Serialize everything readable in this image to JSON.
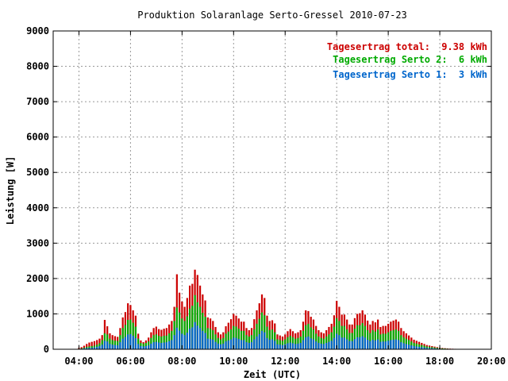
{
  "chart_data": {
    "type": "bar",
    "stacked": true,
    "title": "Produktion Solaranlage Serto-Gressel 2010-07-23",
    "xlabel": "Zeit (UTC)",
    "ylabel": "Leistung [W]",
    "xlim": [
      3.0,
      20.0
    ],
    "ylim": [
      0,
      9000
    ],
    "x_ticks": [
      "04:00",
      "06:00",
      "08:00",
      "10:00",
      "12:00",
      "14:00",
      "16:00",
      "18:00",
      "20:00"
    ],
    "y_ticks": [
      "0",
      "1000",
      "2000",
      "3000",
      "4000",
      "5000",
      "6000",
      "7000",
      "8000",
      "9000"
    ],
    "grid": true,
    "legend_position": "top-right",
    "legend": [
      {
        "label": "Tagesertrag total:",
        "value": "9.38 kWh",
        "color": "#cc0000"
      },
      {
        "label": "Tagesertrag Serto 2:",
        "value": "6 kWh",
        "color": "#00aa00"
      },
      {
        "label": "Tagesertrag Serto 1:",
        "value": "3 kWh",
        "color": "#0066cc"
      }
    ],
    "colors": {
      "total": "#cc0000",
      "serto2": "#00aa00",
      "serto1": "#0066cc"
    },
    "x": [
      4.0,
      4.1,
      4.2,
      4.3,
      4.4,
      4.5,
      4.6,
      4.7,
      4.8,
      4.9,
      5.0,
      5.1,
      5.2,
      5.3,
      5.4,
      5.5,
      5.6,
      5.7,
      5.8,
      5.9,
      6.0,
      6.1,
      6.2,
      6.3,
      6.4,
      6.5,
      6.6,
      6.7,
      6.8,
      6.9,
      7.0,
      7.1,
      7.2,
      7.3,
      7.4,
      7.5,
      7.6,
      7.7,
      7.8,
      7.9,
      8.0,
      8.1,
      8.2,
      8.3,
      8.4,
      8.5,
      8.6,
      8.7,
      8.8,
      8.9,
      9.0,
      9.1,
      9.2,
      9.3,
      9.4,
      9.5,
      9.6,
      9.7,
      9.8,
      9.9,
      10.0,
      10.1,
      10.2,
      10.3,
      10.4,
      10.5,
      10.6,
      10.7,
      10.8,
      10.9,
      11.0,
      11.1,
      11.2,
      11.3,
      11.4,
      11.5,
      11.6,
      11.7,
      11.8,
      11.9,
      12.0,
      12.1,
      12.2,
      12.3,
      12.4,
      12.5,
      12.6,
      12.7,
      12.8,
      12.9,
      13.0,
      13.1,
      13.2,
      13.3,
      13.4,
      13.5,
      13.6,
      13.7,
      13.8,
      13.9,
      14.0,
      14.1,
      14.2,
      14.3,
      14.4,
      14.5,
      14.6,
      14.7,
      14.8,
      14.9,
      15.0,
      15.1,
      15.2,
      15.3,
      15.4,
      15.5,
      15.6,
      15.7,
      15.8,
      15.9,
      16.0,
      16.1,
      16.2,
      16.3,
      16.4,
      16.5,
      16.6,
      16.7,
      16.8,
      16.9,
      17.0,
      17.1,
      17.2,
      17.3,
      17.4,
      17.5,
      17.6,
      17.7,
      17.8,
      17.9,
      18.0,
      18.1,
      18.2,
      18.3,
      18.4,
      18.5,
      18.6,
      18.7,
      18.8,
      18.9,
      19.0
    ],
    "series": [
      {
        "name": "Serto 1",
        "values": [
          10,
          15,
          25,
          35,
          40,
          45,
          55,
          70,
          90,
          130,
          240,
          220,
          150,
          130,
          120,
          115,
          200,
          300,
          350,
          420,
          430,
          380,
          320,
          150,
          90,
          80,
          90,
          110,
          160,
          200,
          210,
          190,
          180,
          190,
          200,
          230,
          260,
          400,
          610,
          530,
          440,
          400,
          470,
          580,
          620,
          770,
          670,
          600,
          520,
          460,
          300,
          290,
          270,
          210,
          160,
          140,
          160,
          220,
          250,
          280,
          330,
          320,
          290,
          260,
          260,
          200,
          180,
          200,
          280,
          360,
          430,
          520,
          480,
          320,
          270,
          280,
          240,
          140,
          130,
          120,
          140,
          170,
          190,
          170,
          150,
          160,
          180,
          260,
          340,
          360,
          310,
          280,
          220,
          180,
          160,
          150,
          180,
          210,
          240,
          320,
          440,
          400,
          330,
          330,
          280,
          230,
          230,
          290,
          340,
          340,
          370,
          330,
          270,
          230,
          270,
          250,
          280,
          210,
          220,
          220,
          240,
          260,
          270,
          280,
          260,
          200,
          170,
          150,
          130,
          110,
          90,
          80,
          70,
          60,
          50,
          40,
          35,
          30,
          25,
          20,
          15,
          12,
          10,
          8,
          6,
          5,
          4,
          3,
          2,
          1,
          1
        ],
        "color": "#0066cc"
      },
      {
        "name": "Serto 2",
        "values": [
          15,
          25,
          45,
          65,
          80,
          90,
          100,
          130,
          170,
          260,
          450,
          420,
          300,
          260,
          240,
          235,
          400,
          600,
          690,
          830,
          840,
          750,
          640,
          300,
          180,
          160,
          180,
          220,
          320,
          400,
          420,
          380,
          360,
          380,
          390,
          450,
          520,
          800,
          1180,
          1040,
          870,
          800,
          930,
          1150,
          1230,
          1530,
          1330,
          1200,
          1030,
          920,
          600,
          580,
          540,
          420,
          320,
          280,
          320,
          440,
          500,
          560,
          660,
          640,
          580,
          520,
          520,
          400,
          360,
          400,
          560,
          720,
          860,
          1040,
          960,
          640,
          540,
          560,
          480,
          280,
          260,
          240,
          280,
          340,
          380,
          340,
          300,
          320,
          360,
          520,
          680,
          720,
          620,
          560,
          440,
          360,
          320,
          300,
          360,
          420,
          480,
          640,
          880,
          800,
          660,
          660,
          560,
          460,
          460,
          580,
          680,
          680,
          740,
          660,
          540,
          460,
          540,
          500,
          560,
          420,
          440,
          440,
          480,
          520,
          540,
          560,
          520,
          400,
          340,
          300,
          260,
          220,
          180,
          160,
          140,
          120,
          100,
          80,
          70,
          60,
          50,
          40,
          30,
          25,
          20,
          15,
          12,
          10,
          8,
          6,
          4,
          2,
          2
        ],
        "color": "#00aa00"
      },
      {
        "name": "total",
        "values": [
          40,
          60,
          100,
          150,
          190,
          210,
          230,
          260,
          300,
          400,
          830,
          650,
          450,
          400,
          370,
          350,
          600,
          900,
          1050,
          1300,
          1250,
          1100,
          950,
          440,
          250,
          200,
          250,
          330,
          480,
          600,
          640,
          570,
          550,
          580,
          600,
          700,
          800,
          1200,
          2120,
          1600,
          1350,
          1200,
          1450,
          1800,
          1850,
          2250,
          2100,
          1800,
          1550,
          1380,
          900,
          870,
          800,
          630,
          480,
          420,
          480,
          650,
          750,
          850,
          1000,
          950,
          870,
          780,
          780,
          600,
          540,
          600,
          850,
          1100,
          1300,
          1550,
          1450,
          950,
          800,
          820,
          730,
          420,
          390,
          360,
          420,
          510,
          570,
          510,
          450,
          480,
          540,
          780,
          1100,
          1080,
          920,
          840,
          660,
          540,
          480,
          450,
          540,
          630,
          720,
          960,
          1370,
          1200,
          980,
          980,
          840,
          700,
          700,
          880,
          1000,
          1020,
          1100,
          980,
          810,
          700,
          800,
          760,
          840,
          630,
          660,
          660,
          720,
          780,
          810,
          840,
          780,
          600,
          510,
          450,
          390,
          330,
          270,
          240,
          210,
          180,
          150,
          120,
          105,
          90,
          75,
          60,
          45,
          37,
          30,
          22,
          18,
          15,
          12,
          9,
          6,
          3,
          3
        ],
        "color": "#cc0000"
      }
    ]
  }
}
